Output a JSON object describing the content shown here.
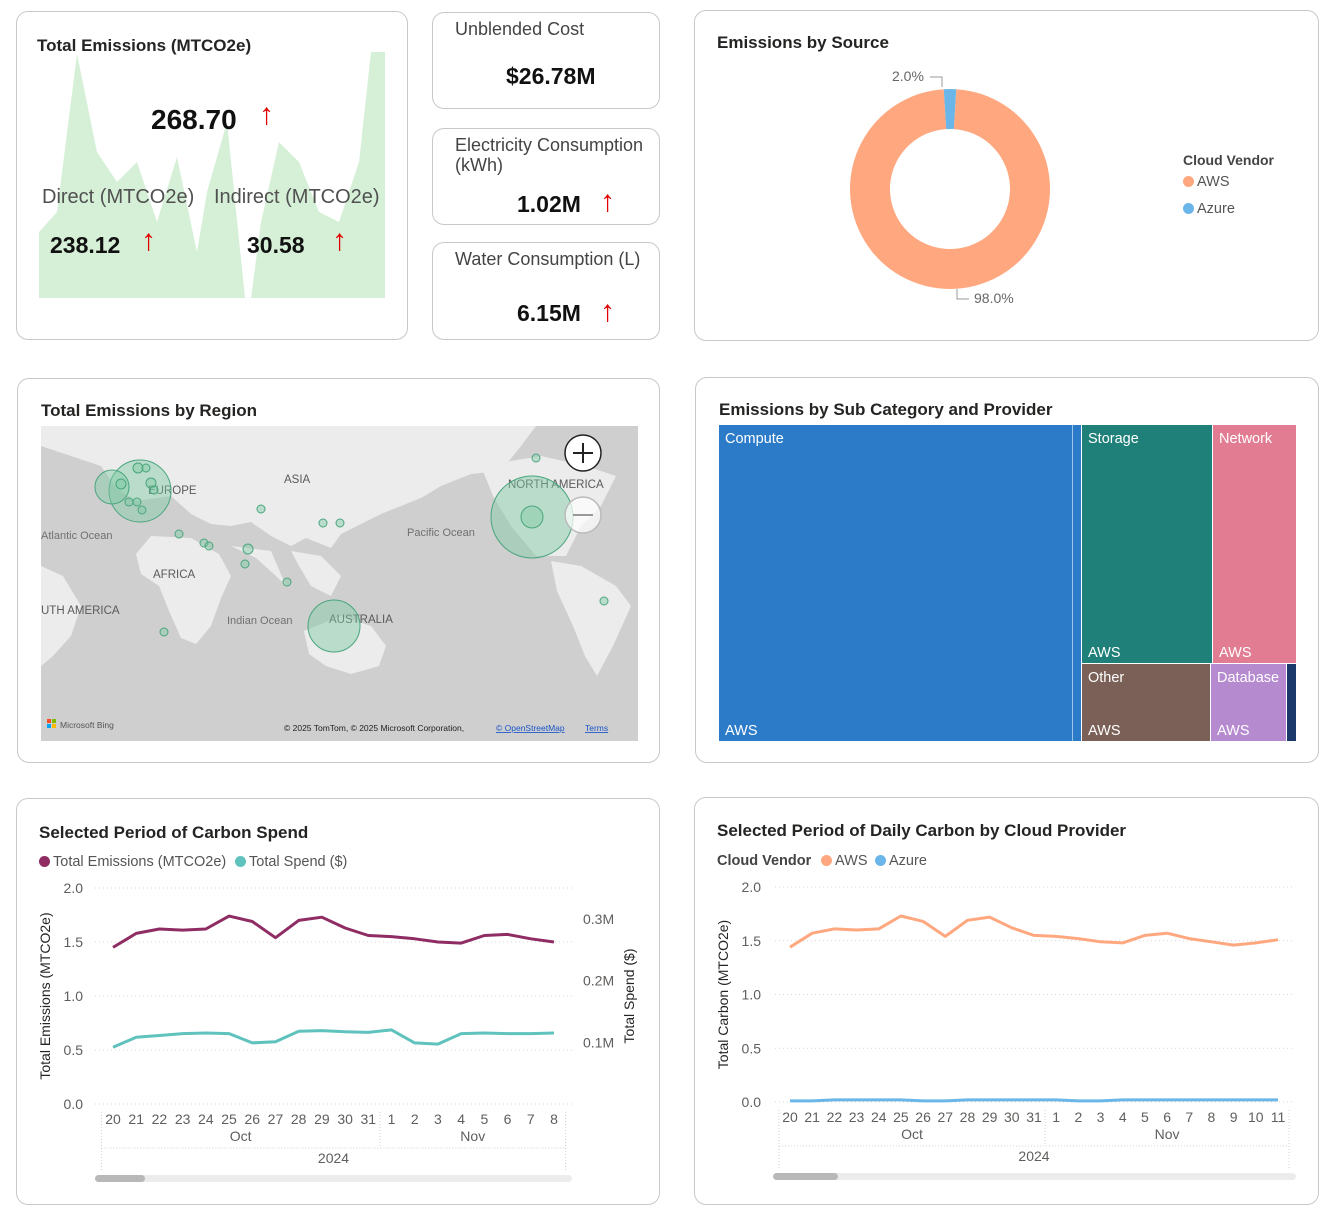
{
  "kpi_emissions": {
    "title": "Total Emissions (MTCO2e)",
    "total": "268.70",
    "direct_label": "Direct (MTCO2e)",
    "direct_value": "238.12",
    "indirect_label": "Indirect (MTCO2e)",
    "indirect_value": "30.58",
    "trend_icon": "up-arrow-icon",
    "arrow_color": "#e00000"
  },
  "kpi_cost": {
    "label": "Unblended Cost",
    "value": "$26.78M"
  },
  "kpi_electricity": {
    "label": "Electricity Consumption (kWh)",
    "value": "1.02M",
    "trend_icon": "up-arrow-icon"
  },
  "kpi_water": {
    "label": "Water Consumption (L)",
    "value": "6.15M",
    "trend_icon": "up-arrow-icon"
  },
  "source_chart": {
    "title": "Emissions by Source",
    "chart_data": {
      "type": "pie",
      "title": "Emissions by Source",
      "legend_title": "Cloud Vendor",
      "legend_position": "right",
      "slices": [
        {
          "name": "AWS",
          "value": 98.0,
          "label": "98.0%",
          "color": "#FFA880"
        },
        {
          "name": "Azure",
          "value": 2.0,
          "label": "2.0%",
          "color": "#6BB6E8"
        }
      ]
    }
  },
  "region_map": {
    "title": "Total Emissions by Region",
    "labels": {
      "asia": "ASIA",
      "europe": "EUROPE",
      "north_america": "NORTH AMERICA",
      "africa": "AFRICA",
      "australia": "AUSTRALIA",
      "south_america": "UTH AMERICA",
      "atlantic": "Atlantic Ocean",
      "pacific": "Pacific Ocean",
      "indian": "Indian Ocean"
    },
    "zoom_in_icon": "zoom-in-icon",
    "zoom_out_icon": "zoom-out-icon",
    "bing_logo": "Microsoft Bing",
    "copyright": "© 2025 TomTom, © 2025 Microsoft Corporation,",
    "osm_link": "© OpenStreetMap",
    "terms_link": "Terms"
  },
  "treemap": {
    "title": "Emissions by Sub Category and Provider",
    "cells": [
      {
        "category": "Compute",
        "provider": "AWS",
        "color": "#2B7BC8"
      },
      {
        "category": "Storage",
        "provider": "AWS",
        "color": "#1F8079"
      },
      {
        "category": "Network",
        "provider": "AWS",
        "color": "#E17C92"
      },
      {
        "category": "Other",
        "provider": "AWS",
        "color": "#7B6057"
      },
      {
        "category": "Database",
        "provider": "AWS",
        "color": "#B58ACF"
      }
    ]
  },
  "carbon_spend": {
    "title": "Selected Period of Carbon Spend",
    "legend": {
      "emissions": "Total Emissions (MTCO2e)",
      "spend": "Total Spend ($)"
    },
    "chart_data": {
      "type": "line",
      "title": "Selected Period of Carbon Spend",
      "x": [
        "20",
        "21",
        "22",
        "23",
        "24",
        "25",
        "26",
        "27",
        "28",
        "29",
        "30",
        "31",
        "1",
        "2",
        "3",
        "4",
        "5",
        "6",
        "7",
        "8"
      ],
      "month_labels": [
        "Oct",
        "Nov"
      ],
      "year_label": "2024",
      "ylabel": "Total Emissions (MTCO2e)",
      "y2label": "Total Spend ($)",
      "ylim": [
        0,
        2.0
      ],
      "yticks": [
        "0.0",
        "0.5",
        "1.0",
        "1.5",
        "2.0"
      ],
      "y2lim": [
        0,
        0.35
      ],
      "y2ticks": [
        "0.1M",
        "0.2M",
        "0.3M"
      ],
      "series": [
        {
          "name": "Total Emissions (MTCO2e)",
          "axis": "left",
          "color": "#8E2C63",
          "values": [
            1.45,
            1.58,
            1.62,
            1.61,
            1.62,
            1.74,
            1.69,
            1.54,
            1.7,
            1.73,
            1.63,
            1.56,
            1.55,
            1.53,
            1.5,
            1.49,
            1.56,
            1.57,
            1.53,
            1.5
          ]
        },
        {
          "name": "Total Spend ($)",
          "axis": "right",
          "color": "#5FC2BD",
          "values": [
            0.092,
            0.108,
            0.111,
            0.114,
            0.115,
            0.114,
            0.099,
            0.101,
            0.118,
            0.119,
            0.117,
            0.116,
            0.12,
            0.099,
            0.097,
            0.114,
            0.115,
            0.114,
            0.114,
            0.115
          ]
        }
      ]
    }
  },
  "daily_carbon": {
    "title": "Selected Period of Daily Carbon by Cloud Provider",
    "legend_title": "Cloud Vendor",
    "legend": {
      "aws": "AWS",
      "azure": "Azure"
    },
    "chart_data": {
      "type": "line",
      "title": "Selected Period of Daily Carbon by Cloud Provider",
      "x": [
        "20",
        "21",
        "22",
        "23",
        "24",
        "25",
        "26",
        "27",
        "28",
        "29",
        "30",
        "31",
        "1",
        "2",
        "3",
        "4",
        "5",
        "6",
        "7",
        "8",
        "9",
        "10",
        "11"
      ],
      "month_labels": [
        "Oct",
        "Nov"
      ],
      "year_label": "2024",
      "ylabel": "Total Carbon (MTCO2e)",
      "ylim": [
        0,
        2.0
      ],
      "yticks": [
        "0.0",
        "0.5",
        "1.0",
        "1.5",
        "2.0"
      ],
      "series": [
        {
          "name": "AWS",
          "color": "#FFA880",
          "values": [
            1.44,
            1.57,
            1.61,
            1.6,
            1.61,
            1.73,
            1.68,
            1.54,
            1.69,
            1.72,
            1.62,
            1.55,
            1.54,
            1.52,
            1.49,
            1.48,
            1.55,
            1.57,
            1.52,
            1.49,
            1.46,
            1.48,
            1.51
          ]
        },
        {
          "name": "Azure",
          "color": "#6BB6E8",
          "values": [
            0.01,
            0.01,
            0.02,
            0.02,
            0.02,
            0.02,
            0.01,
            0.01,
            0.02,
            0.02,
            0.02,
            0.02,
            0.02,
            0.01,
            0.01,
            0.02,
            0.02,
            0.02,
            0.02,
            0.02,
            0.02,
            0.02,
            0.02
          ]
        }
      ]
    }
  }
}
